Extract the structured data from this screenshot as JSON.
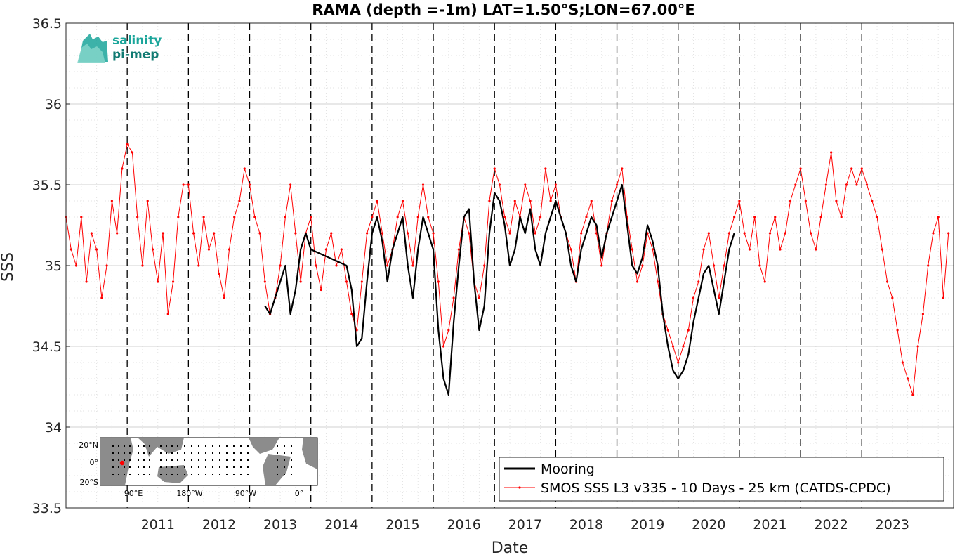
{
  "chart_data": {
    "type": "line",
    "title": "RAMA (depth =-1m) LAT=1.50°S;LON=67.00°E",
    "xlabel": "Date",
    "ylabel": "SSS",
    "xlim": [
      "2010-01",
      "2024-07"
    ],
    "ylim": [
      33.5,
      36.5
    ],
    "grid": true,
    "minor_grid": true,
    "legend_position": "bottom-right",
    "yticks": [
      "33.5",
      "34",
      "34.5",
      "35",
      "35.5",
      "36",
      "36.5"
    ],
    "xticks": [
      "2011",
      "2012",
      "2013",
      "2014",
      "2015",
      "2016",
      "2017",
      "2018",
      "2019",
      "2020",
      "2021",
      "2022",
      "2023"
    ],
    "year_boundaries": [
      "2011",
      "2012",
      "2013",
      "2014",
      "2015",
      "2016",
      "2017",
      "2018",
      "2019",
      "2020",
      "2021",
      "2022",
      "2023"
    ],
    "series": [
      {
        "name": "Mooring",
        "color": "#000000",
        "x": [
          "2013-04",
          "2013-05",
          "2013-06",
          "2013-07",
          "2013-08",
          "2013-09",
          "2013-10",
          "2013-11",
          "2013-12",
          "2014-01",
          "2014-08",
          "2014-09",
          "2014-10",
          "2014-11",
          "2014-12",
          "2015-01",
          "2015-02",
          "2015-03",
          "2015-04",
          "2015-05",
          "2015-06",
          "2015-07",
          "2015-08",
          "2015-09",
          "2015-10",
          "2015-11",
          "2015-12",
          "2016-01",
          "2016-02",
          "2016-03",
          "2016-04",
          "2016-05",
          "2016-06",
          "2016-07",
          "2016-08",
          "2016-09",
          "2016-10",
          "2016-11",
          "2016-12",
          "2017-01",
          "2017-02",
          "2017-03",
          "2017-04",
          "2017-05",
          "2017-06",
          "2017-07",
          "2017-08",
          "2017-09",
          "2017-10",
          "2017-11",
          "2017-12",
          "2018-01",
          "2018-02",
          "2018-03",
          "2018-04",
          "2018-05",
          "2018-06",
          "2018-07",
          "2018-08",
          "2018-09",
          "2018-10",
          "2018-11",
          "2018-12",
          "2019-01",
          "2019-02",
          "2019-03",
          "2019-04",
          "2019-05",
          "2019-06",
          "2019-07",
          "2019-08",
          "2019-09",
          "2019-10",
          "2019-11",
          "2019-12",
          "2020-01",
          "2020-02",
          "2020-03",
          "2020-04",
          "2020-05",
          "2020-06",
          "2020-07",
          "2020-08",
          "2020-09",
          "2020-10",
          "2020-11",
          "2020-12"
        ],
        "values": [
          34.75,
          34.7,
          34.8,
          34.9,
          35.0,
          34.7,
          34.85,
          35.1,
          35.2,
          35.1,
          35.0,
          34.85,
          34.5,
          34.55,
          34.9,
          35.2,
          35.3,
          35.15,
          34.9,
          35.1,
          35.2,
          35.3,
          35.0,
          34.8,
          35.1,
          35.3,
          35.2,
          35.1,
          34.6,
          34.3,
          34.2,
          34.65,
          35.0,
          35.3,
          35.35,
          34.9,
          34.6,
          34.75,
          35.2,
          35.45,
          35.4,
          35.25,
          35.0,
          35.1,
          35.3,
          35.2,
          35.35,
          35.1,
          35.0,
          35.2,
          35.3,
          35.4,
          35.3,
          35.2,
          35.0,
          34.9,
          35.1,
          35.2,
          35.3,
          35.25,
          35.05,
          35.2,
          35.3,
          35.4,
          35.5,
          35.25,
          35.0,
          34.95,
          35.05,
          35.25,
          35.15,
          35.0,
          34.7,
          34.5,
          34.35,
          34.3,
          34.35,
          34.45,
          34.65,
          34.8,
          34.95,
          35.0,
          34.85,
          34.7,
          34.9,
          35.1,
          35.2
        ]
      },
      {
        "name": "SMOS SSS L3 v335 - 10 Days - 25 km (CATDS-CPDC)",
        "color": "#ff0000",
        "x": [
          "2010-01",
          "2010-02",
          "2010-03",
          "2010-04",
          "2010-05",
          "2010-06",
          "2010-07",
          "2010-08",
          "2010-09",
          "2010-10",
          "2010-11",
          "2010-12",
          "2011-01",
          "2011-02",
          "2011-03",
          "2011-04",
          "2011-05",
          "2011-06",
          "2011-07",
          "2011-08",
          "2011-09",
          "2011-10",
          "2011-11",
          "2011-12",
          "2012-01",
          "2012-02",
          "2012-03",
          "2012-04",
          "2012-05",
          "2012-06",
          "2012-07",
          "2012-08",
          "2012-09",
          "2012-10",
          "2012-11",
          "2012-12",
          "2013-01",
          "2013-02",
          "2013-03",
          "2013-04",
          "2013-05",
          "2013-06",
          "2013-07",
          "2013-08",
          "2013-09",
          "2013-10",
          "2013-11",
          "2013-12",
          "2014-01",
          "2014-02",
          "2014-03",
          "2014-04",
          "2014-05",
          "2014-06",
          "2014-07",
          "2014-08",
          "2014-09",
          "2014-10",
          "2014-11",
          "2014-12",
          "2015-01",
          "2015-02",
          "2015-03",
          "2015-04",
          "2015-05",
          "2015-06",
          "2015-07",
          "2015-08",
          "2015-09",
          "2015-10",
          "2015-11",
          "2015-12",
          "2016-01",
          "2016-02",
          "2016-03",
          "2016-04",
          "2016-05",
          "2016-06",
          "2016-07",
          "2016-08",
          "2016-09",
          "2016-10",
          "2016-11",
          "2016-12",
          "2017-01",
          "2017-02",
          "2017-03",
          "2017-04",
          "2017-05",
          "2017-06",
          "2017-07",
          "2017-08",
          "2017-09",
          "2017-10",
          "2017-11",
          "2017-12",
          "2018-01",
          "2018-02",
          "2018-03",
          "2018-04",
          "2018-05",
          "2018-06",
          "2018-07",
          "2018-08",
          "2018-09",
          "2018-10",
          "2018-11",
          "2018-12",
          "2019-01",
          "2019-02",
          "2019-03",
          "2019-04",
          "2019-05",
          "2019-06",
          "2019-07",
          "2019-08",
          "2019-09",
          "2019-10",
          "2019-11",
          "2019-12",
          "2020-01",
          "2020-02",
          "2020-03",
          "2020-04",
          "2020-05",
          "2020-06",
          "2020-07",
          "2020-08",
          "2020-09",
          "2020-10",
          "2020-11",
          "2020-12",
          "2021-01",
          "2021-02",
          "2021-03",
          "2021-04",
          "2021-05",
          "2021-06",
          "2021-07",
          "2021-08",
          "2021-09",
          "2021-10",
          "2021-11",
          "2021-12",
          "2022-01",
          "2022-02",
          "2022-03",
          "2022-04",
          "2022-05",
          "2022-06",
          "2022-07",
          "2022-08",
          "2022-09",
          "2022-10",
          "2022-11",
          "2022-12",
          "2023-01",
          "2023-02",
          "2023-03",
          "2023-04",
          "2023-05",
          "2023-06",
          "2023-07",
          "2023-08",
          "2023-09",
          "2023-10",
          "2023-11",
          "2023-12",
          "2024-01",
          "2024-02",
          "2024-03",
          "2024-04",
          "2024-05",
          "2024-06"
        ],
        "values": [
          35.3,
          35.1,
          35.0,
          35.3,
          34.9,
          35.2,
          35.1,
          34.8,
          35.0,
          35.4,
          35.2,
          35.6,
          35.75,
          35.7,
          35.3,
          35.0,
          35.4,
          35.1,
          34.9,
          35.2,
          34.7,
          34.9,
          35.3,
          35.5,
          35.5,
          35.2,
          35.0,
          35.3,
          35.1,
          35.2,
          34.95,
          34.8,
          35.1,
          35.3,
          35.4,
          35.6,
          35.5,
          35.3,
          35.2,
          34.9,
          34.7,
          34.8,
          35.0,
          35.3,
          35.5,
          35.2,
          34.9,
          35.2,
          35.3,
          35.0,
          34.85,
          35.1,
          35.2,
          35.0,
          35.1,
          34.9,
          34.7,
          34.6,
          34.9,
          35.2,
          35.3,
          35.4,
          35.2,
          35.0,
          35.1,
          35.3,
          35.4,
          35.2,
          35.0,
          35.3,
          35.5,
          35.3,
          35.2,
          34.9,
          34.5,
          34.6,
          34.8,
          35.1,
          35.3,
          35.2,
          34.9,
          34.8,
          35.0,
          35.4,
          35.6,
          35.5,
          35.3,
          35.2,
          35.4,
          35.3,
          35.5,
          35.4,
          35.2,
          35.3,
          35.6,
          35.4,
          35.5,
          35.3,
          35.2,
          35.1,
          34.9,
          35.2,
          35.3,
          35.4,
          35.2,
          35.0,
          35.2,
          35.4,
          35.5,
          35.6,
          35.3,
          35.1,
          34.9,
          35.0,
          35.2,
          35.1,
          34.9,
          34.7,
          34.6,
          34.5,
          34.4,
          34.5,
          34.6,
          34.8,
          34.9,
          35.1,
          35.2,
          35.0,
          34.8,
          35.0,
          35.2,
          35.3,
          35.4,
          35.2,
          35.1,
          35.3,
          35.0,
          34.9,
          35.2,
          35.3,
          35.1,
          35.2,
          35.4,
          35.5,
          35.6,
          35.4,
          35.2,
          35.1,
          35.3,
          35.5,
          35.7,
          35.4,
          35.3,
          35.5,
          35.6,
          35.5,
          35.6,
          35.5,
          35.4,
          35.3,
          35.1,
          34.9,
          34.8,
          34.6,
          34.4,
          34.3,
          34.2,
          34.5,
          34.7,
          35.0,
          35.2,
          35.3,
          34.8,
          35.2
        ]
      }
    ]
  },
  "inset_map": {
    "lat_labels": [
      "20°N",
      "0°",
      "20°S"
    ],
    "lon_labels": [
      "90°E",
      "180°W",
      "90°W",
      "0°"
    ]
  },
  "logo": {
    "line1": "salinity",
    "line2": "pi-mep"
  },
  "colors": {
    "mooring": "#000000",
    "smos": "#ff0000",
    "logo": "#1aa59a"
  }
}
